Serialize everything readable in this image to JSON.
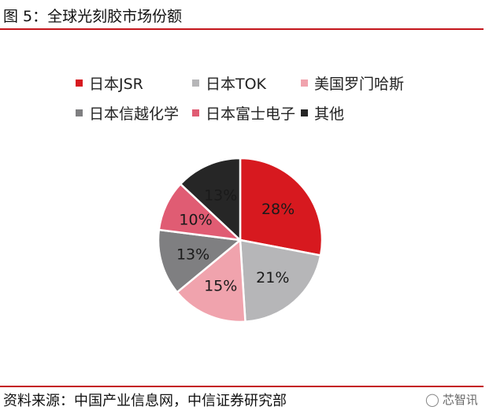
{
  "header": {
    "title": "图 5：全球光刻胶市场份额"
  },
  "footer": {
    "source": "资料来源：中国产业信息网，中信证券研究部",
    "watermark_text": "芯智讯",
    "watermark_icon": "wechat-icon"
  },
  "chart_data": {
    "type": "pie",
    "title": "",
    "unit": "%",
    "legend_position": "top",
    "slices": [
      {
        "label": "日本JSR",
        "value": 28,
        "display": "28%",
        "color": "#d7191f"
      },
      {
        "label": "日本TOK",
        "value": 21,
        "display": "21%",
        "color": "#b6b6b8"
      },
      {
        "label": "美国罗门哈斯",
        "value": 15,
        "display": "15%",
        "color": "#f0a3ad"
      },
      {
        "label": "日本信越化学",
        "value": 13,
        "display": "13%",
        "color": "#7f7f81"
      },
      {
        "label": "日本富士电子",
        "value": 10,
        "display": "10%",
        "color": "#e05c73"
      },
      {
        "label": "其他",
        "value": 13,
        "display": "13%",
        "color": "#262626"
      }
    ]
  }
}
